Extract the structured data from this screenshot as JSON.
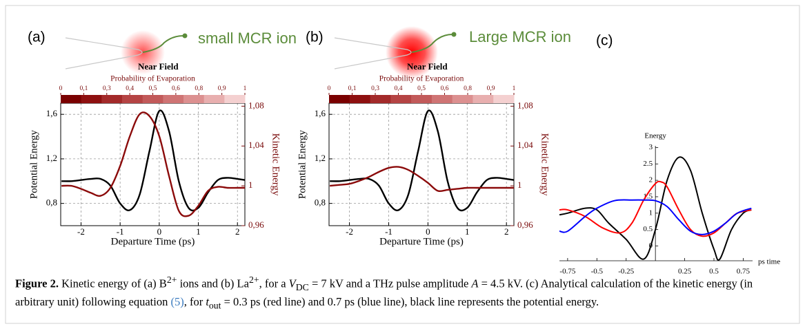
{
  "panel_labels": [
    "(a)",
    "(b)",
    "(c)"
  ],
  "illustrations": [
    {
      "ion_label": "small MCR ion",
      "field_label": "Near Field"
    },
    {
      "ion_label": "Large MCR ion",
      "field_label": "Near Field"
    }
  ],
  "chart_data": [
    {
      "type": "line",
      "frame": true,
      "grid": true,
      "xlabel": "Departure Time (ps)",
      "ylabel": "Potential Energy",
      "y2label": "Kinetic Energy",
      "y2color": "#7a0c0c",
      "colorbar": {
        "title": "Probability of Evaporation",
        "ticks": [
          0,
          {
            "value": 0.1,
            "label": "0,1"
          },
          {
            "value": 0.3,
            "label": "0,3"
          },
          {
            "value": 0.4,
            "label": "0,4"
          },
          {
            "value": 0.5,
            "label": "0,5"
          },
          {
            "value": 0.6,
            "label": "0,6"
          },
          {
            "value": 0.8,
            "label": "0,8"
          },
          {
            "value": 0.9,
            "label": "0,9"
          },
          1
        ],
        "colors": [
          "#7a0000",
          "#8e1010",
          "#a32a2a",
          "#b54444",
          "#c25a5a",
          "#cf7474",
          "#dc9090",
          "#e8afaf",
          "#f4d0d0"
        ]
      },
      "xlim": [
        -2.52,
        2.19
      ],
      "xticks": [
        -2,
        -1,
        0,
        1,
        2
      ],
      "ylim": [
        0.6,
        1.7
      ],
      "yticks": [
        {
          "value": 0.8,
          "label": "0,8"
        },
        {
          "value": 1.2,
          "label": "1,2"
        },
        {
          "value": 1.6,
          "label": "1,6"
        }
      ],
      "y2lim": [
        0.96,
        1.083
      ],
      "y2ticks": [
        {
          "value": 0.96,
          "label": "0,96"
        },
        1,
        {
          "value": 1.04,
          "label": "1,04"
        },
        {
          "value": 1.08,
          "label": "1,08"
        }
      ],
      "x": [
        -2.5,
        -2.25,
        -2,
        -1.75,
        -1.5,
        -1.25,
        -1,
        -0.75,
        -0.5,
        -0.25,
        0,
        0.25,
        0.5,
        0.75,
        1,
        1.25,
        1.5,
        1.75,
        2,
        2.19
      ],
      "series": [
        {
          "color": "#000000",
          "values": [
            1.0,
            1.0,
            1.01,
            1.02,
            1.02,
            0.96,
            0.8,
            0.74,
            0.88,
            1.27,
            1.63,
            1.45,
            1.0,
            0.76,
            0.76,
            0.9,
            1.01,
            1.03,
            1.02,
            1.01
          ]
        },
        {
          "color": "#8b0a0a",
          "axis": "y2",
          "values": [
            1.0,
            1.0,
            0.997,
            0.993,
            0.99,
            0.998,
            1.02,
            1.05,
            1.072,
            1.07,
            1.05,
            1.01,
            0.975,
            0.97,
            0.98,
            0.995,
            0.999,
            0.998,
            0.998,
            0.998
          ]
        }
      ]
    },
    {
      "type": "line",
      "frame": true,
      "grid": true,
      "xlabel": "Departure Time (ps)",
      "ylabel": "Potential Energy",
      "y2label": "Kinetic Energy",
      "y2color": "#7a0c0c",
      "colorbar": {
        "title": "Probability of Evaporation",
        "ticks": [
          0,
          {
            "value": 0.1,
            "label": "0,1"
          },
          {
            "value": 0.3,
            "label": "0,3"
          },
          {
            "value": 0.4,
            "label": "0,4"
          },
          {
            "value": 0.5,
            "label": "0,5"
          },
          {
            "value": 0.6,
            "label": "0,6"
          },
          {
            "value": 0.8,
            "label": "0,8"
          },
          {
            "value": 0.9,
            "label": "0,9"
          },
          1
        ],
        "colors": [
          "#7a0000",
          "#8e1010",
          "#a32a2a",
          "#b54444",
          "#c25a5a",
          "#cf7474",
          "#dc9090",
          "#e8afaf",
          "#f4d0d0"
        ]
      },
      "xlim": [
        -2.52,
        2.19
      ],
      "xticks": [
        -2,
        -1,
        0,
        1,
        2
      ],
      "ylim": [
        0.6,
        1.7
      ],
      "yticks": [
        {
          "value": 0.8,
          "label": "0,8"
        },
        {
          "value": 1.2,
          "label": "1,2"
        },
        {
          "value": 1.6,
          "label": "1,6"
        }
      ],
      "y2lim": [
        0.96,
        1.083
      ],
      "y2ticks": [
        {
          "value": 0.96,
          "label": "0,96"
        },
        1,
        {
          "value": 1.04,
          "label": "1,04"
        },
        {
          "value": 1.08,
          "label": "1,08"
        }
      ],
      "x": [
        -2.5,
        -2.25,
        -2,
        -1.75,
        -1.5,
        -1.25,
        -1,
        -0.75,
        -0.5,
        -0.25,
        0,
        0.25,
        0.5,
        0.75,
        1,
        1.25,
        1.5,
        1.75,
        2,
        2.19
      ],
      "series": [
        {
          "color": "#000000",
          "values": [
            1.0,
            1.0,
            1.01,
            1.02,
            1.02,
            0.96,
            0.8,
            0.74,
            0.88,
            1.27,
            1.63,
            1.45,
            1.0,
            0.76,
            0.76,
            0.9,
            1.01,
            1.03,
            1.02,
            1.01
          ]
        },
        {
          "color": "#8b0a0a",
          "axis": "y2",
          "values": [
            1.0,
            1.001,
            1.002,
            1.005,
            1.009,
            1.014,
            1.018,
            1.019,
            1.016,
            1.01,
            1.003,
            0.995,
            0.996,
            0.997,
            0.998,
            0.998,
            0.998,
            0.998,
            0.998,
            0.998
          ]
        }
      ]
    },
    {
      "type": "line",
      "frame": false,
      "grid": false,
      "xlabel": "ps time",
      "ylabel": "Energy",
      "xlim": [
        -0.82,
        0.83
      ],
      "xticks": [
        -0.75,
        -0.5,
        -0.25,
        0.25,
        0.5,
        0.75
      ],
      "ylim": [
        -0.45,
        3.05
      ],
      "yticks": [
        0,
        0.5,
        1,
        1.5,
        2,
        2.5,
        3
      ],
      "series": [
        {
          "color": "#000000",
          "x": [
            -0.82,
            -0.75,
            -0.6,
            -0.5,
            -0.4,
            -0.25,
            -0.1,
            0,
            0.1,
            0.2,
            0.3,
            0.4,
            0.5,
            0.55,
            0.65,
            0.75,
            0.82
          ],
          "values": [
            0.95,
            1.0,
            1.15,
            1.1,
            0.7,
            0.2,
            -0.4,
            0.5,
            2.0,
            2.7,
            2.3,
            1.0,
            -0.1,
            -0.4,
            0.5,
            1.0,
            1.1
          ]
        },
        {
          "color": "#ff0000",
          "x": [
            -0.82,
            -0.75,
            -0.6,
            -0.45,
            -0.3,
            -0.2,
            -0.1,
            0,
            0.05,
            0.1,
            0.2,
            0.3,
            0.4,
            0.5,
            0.6,
            0.7,
            0.82
          ],
          "values": [
            1.1,
            1.1,
            0.9,
            0.55,
            0.4,
            0.7,
            1.4,
            1.9,
            1.95,
            1.8,
            1.1,
            0.5,
            0.3,
            0.4,
            0.7,
            1.0,
            1.1
          ]
        },
        {
          "color": "#0000ff",
          "x": [
            -0.82,
            -0.75,
            -0.6,
            -0.5,
            -0.35,
            -0.2,
            -0.1,
            0,
            0.1,
            0.2,
            0.3,
            0.4,
            0.5,
            0.6,
            0.7,
            0.82
          ],
          "values": [
            0.45,
            0.45,
            0.9,
            1.15,
            1.38,
            1.4,
            1.4,
            1.38,
            1.2,
            0.8,
            0.45,
            0.35,
            0.45,
            0.7,
            1.0,
            1.15
          ]
        }
      ]
    }
  ],
  "caption": {
    "label": "Figure 2.",
    "parts": [
      " Kinetic energy of (a) B",
      "2+",
      " ions and (b) La",
      "2+",
      ", for a ",
      "V",
      "DC",
      " = 7 kV and a THz pulse amplitude ",
      "A",
      " = 4.5 kV. (c) Analytical calculation of the kinetic energy (in arbitrary unit) following equation ",
      "(5)",
      ", for ",
      "t",
      "out",
      " = 0.3 ps (red line) and 0.7 ps (blue line), black line represents the potential energy."
    ]
  }
}
